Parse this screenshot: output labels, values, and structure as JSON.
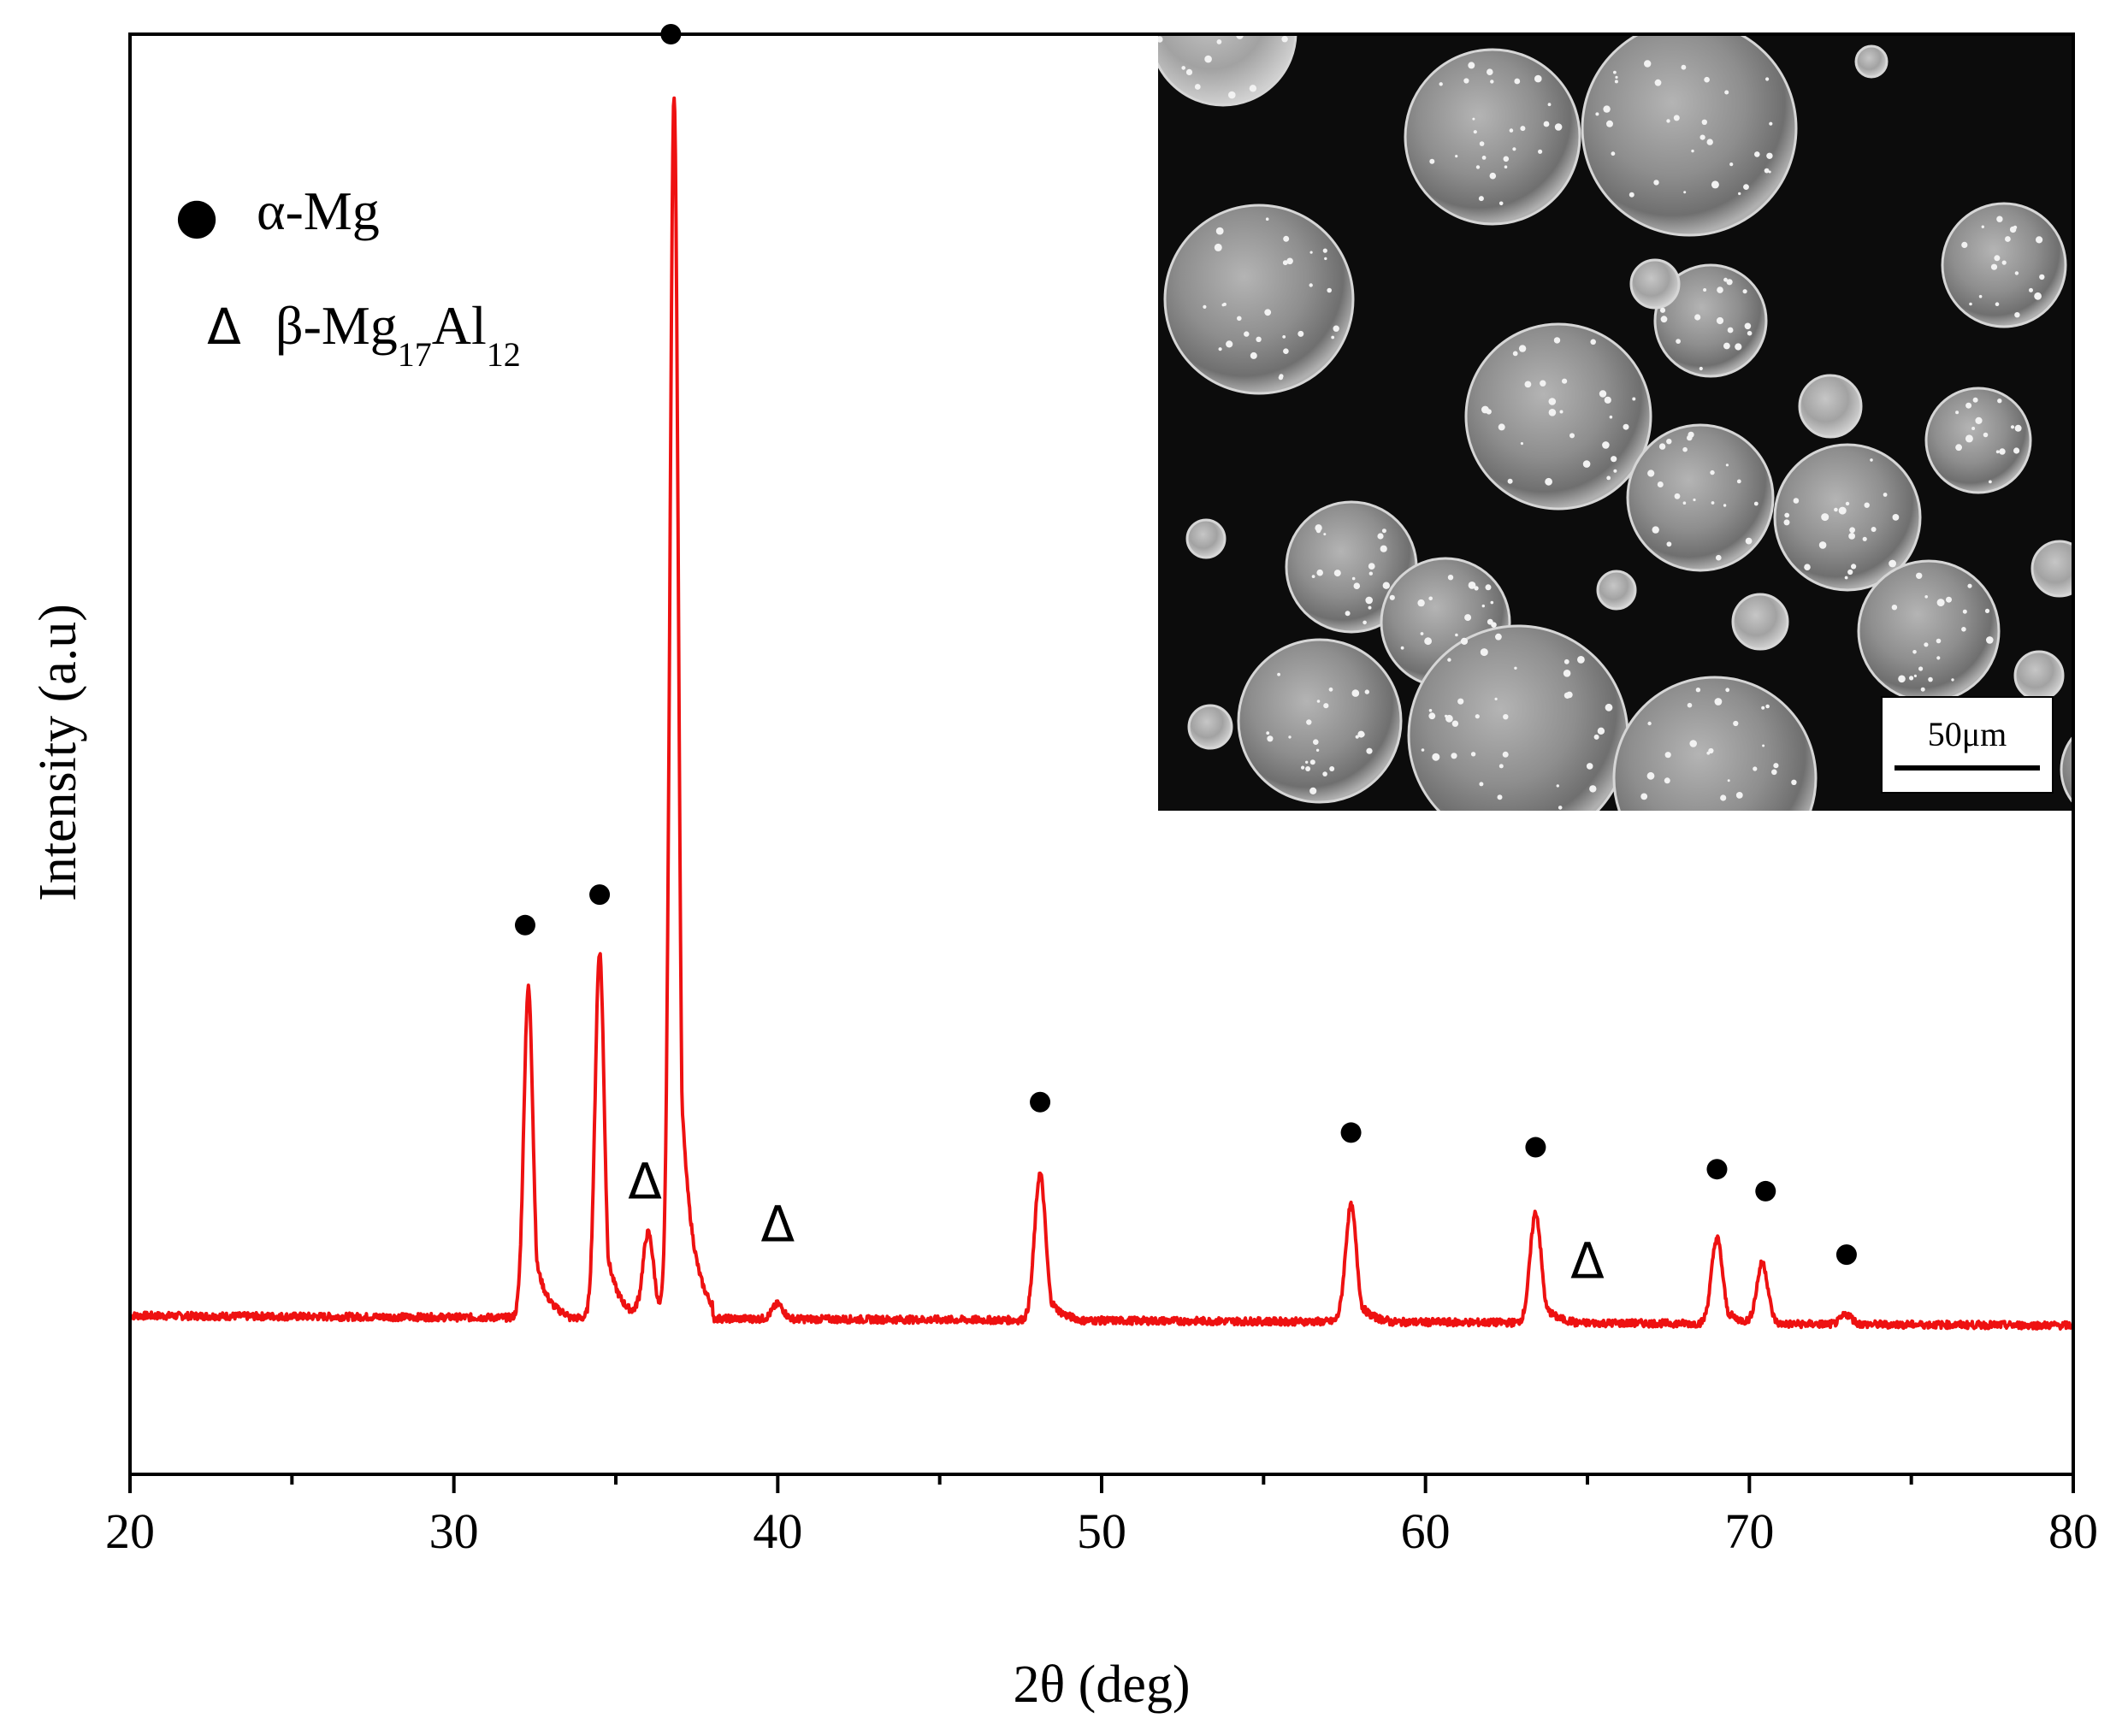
{
  "chart_data": {
    "type": "line",
    "xlabel": "2θ (deg)",
    "ylabel": "Intensity (a.u)",
    "xlim": [
      20,
      80
    ],
    "ylim": [
      -0.13,
      1.05
    ],
    "xticks": [
      20,
      30,
      40,
      50,
      60,
      70,
      80
    ],
    "yticks_shown": false,
    "grid": false,
    "legend_position": "top-left",
    "series": [
      {
        "color": "#ee1111",
        "peaks": [
          {
            "x": 32.3,
            "y": 0.27
          },
          {
            "x": 34.5,
            "y": 0.3
          },
          {
            "x": 36.0,
            "y": 0.07
          },
          {
            "x": 36.8,
            "y": 1.0
          },
          {
            "x": 40.0,
            "y": 0.012
          },
          {
            "x": 48.1,
            "y": 0.12
          },
          {
            "x": 57.7,
            "y": 0.095
          },
          {
            "x": 63.4,
            "y": 0.09
          },
          {
            "x": 69.0,
            "y": 0.07
          },
          {
            "x": 70.4,
            "y": 0.05
          },
          {
            "x": 73.0,
            "y": 0.008
          }
        ],
        "baseline": [
          {
            "x": 20,
            "y": 0.0
          },
          {
            "x": 80,
            "y": -0.008
          }
        ]
      }
    ],
    "legend": [
      {
        "symbol": "●",
        "label": "α-Mg"
      },
      {
        "symbol": "Δ",
        "label_main": "β-Mg",
        "sub1": "17",
        "mid": "Al",
        "sub2": "12"
      }
    ],
    "markers": [
      {
        "symbol": "●",
        "x": 32.2,
        "y": 0.32
      },
      {
        "symbol": "●",
        "x": 34.5,
        "y": 0.345
      },
      {
        "symbol": "●",
        "x": 36.7,
        "y": 1.05
      },
      {
        "symbol": "Δ",
        "x": 35.9,
        "y": 0.11
      },
      {
        "symbol": "Δ",
        "x": 40.0,
        "y": 0.075
      },
      {
        "symbol": "●",
        "x": 48.1,
        "y": 0.175
      },
      {
        "symbol": "●",
        "x": 57.7,
        "y": 0.15
      },
      {
        "symbol": "●",
        "x": 63.4,
        "y": 0.138
      },
      {
        "symbol": "Δ",
        "x": 65.0,
        "y": 0.045
      },
      {
        "symbol": "●",
        "x": 69.0,
        "y": 0.12
      },
      {
        "symbol": "●",
        "x": 70.5,
        "y": 0.102
      },
      {
        "symbol": "●",
        "x": 73.0,
        "y": 0.05
      }
    ],
    "inset": {
      "kind": "SEM micrograph",
      "scale_bar_label": "50μm"
    }
  }
}
